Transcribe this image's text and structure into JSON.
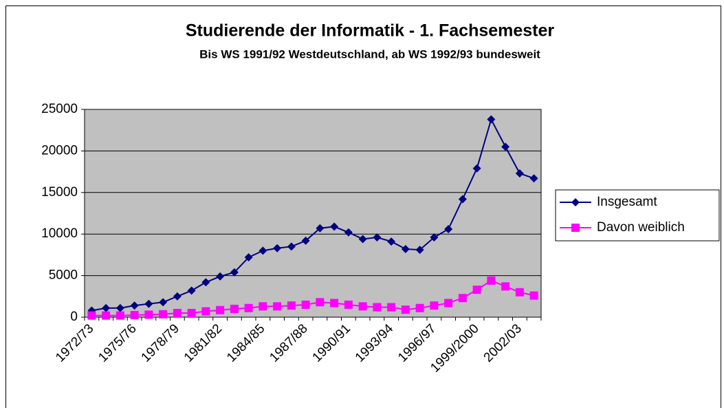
{
  "chart_data": {
    "type": "line",
    "title": "Studierende der Informatik - 1. Fachsemester",
    "subtitle": "Bis WS 1991/92 Westdeutschland, ab WS 1992/93 bundesweit",
    "categories": [
      "1972/73",
      null,
      null,
      "1975/76",
      null,
      null,
      "1978/79",
      null,
      null,
      "1981/82",
      null,
      null,
      "1984/85",
      null,
      null,
      "1987/88",
      null,
      null,
      "1990/91",
      null,
      null,
      "1993/94",
      null,
      null,
      "1996/97",
      null,
      null,
      "1999/2000",
      null,
      null,
      "2002/03",
      null
    ],
    "series": [
      {
        "name": "Insgesamt",
        "color": "#000080",
        "marker": "diamond",
        "values": [
          800,
          1100,
          1100,
          1400,
          1600,
          1800,
          2500,
          3200,
          4200,
          4900,
          5400,
          7200,
          8000,
          8300,
          8500,
          9200,
          10700,
          10900,
          10200,
          9400,
          9600,
          9100,
          8200,
          8100,
          9600,
          10600,
          14200,
          17900,
          23800,
          20500,
          17300,
          16700
        ]
      },
      {
        "name": "Davon weiblich",
        "color": "#ff00ff",
        "marker": "square",
        "values": [
          200,
          200,
          200,
          250,
          300,
          350,
          500,
          500,
          700,
          850,
          1000,
          1100,
          1300,
          1300,
          1400,
          1500,
          1800,
          1700,
          1500,
          1300,
          1200,
          1200,
          900,
          1100,
          1400,
          1700,
          2300,
          3300,
          4400,
          3700,
          3000,
          2600
        ]
      }
    ],
    "ylim": [
      0,
      25000
    ],
    "yticks": [
      0,
      5000,
      10000,
      15000,
      20000,
      25000
    ],
    "grid": true,
    "legend": "right",
    "plot_background": "#c0c0c0"
  }
}
